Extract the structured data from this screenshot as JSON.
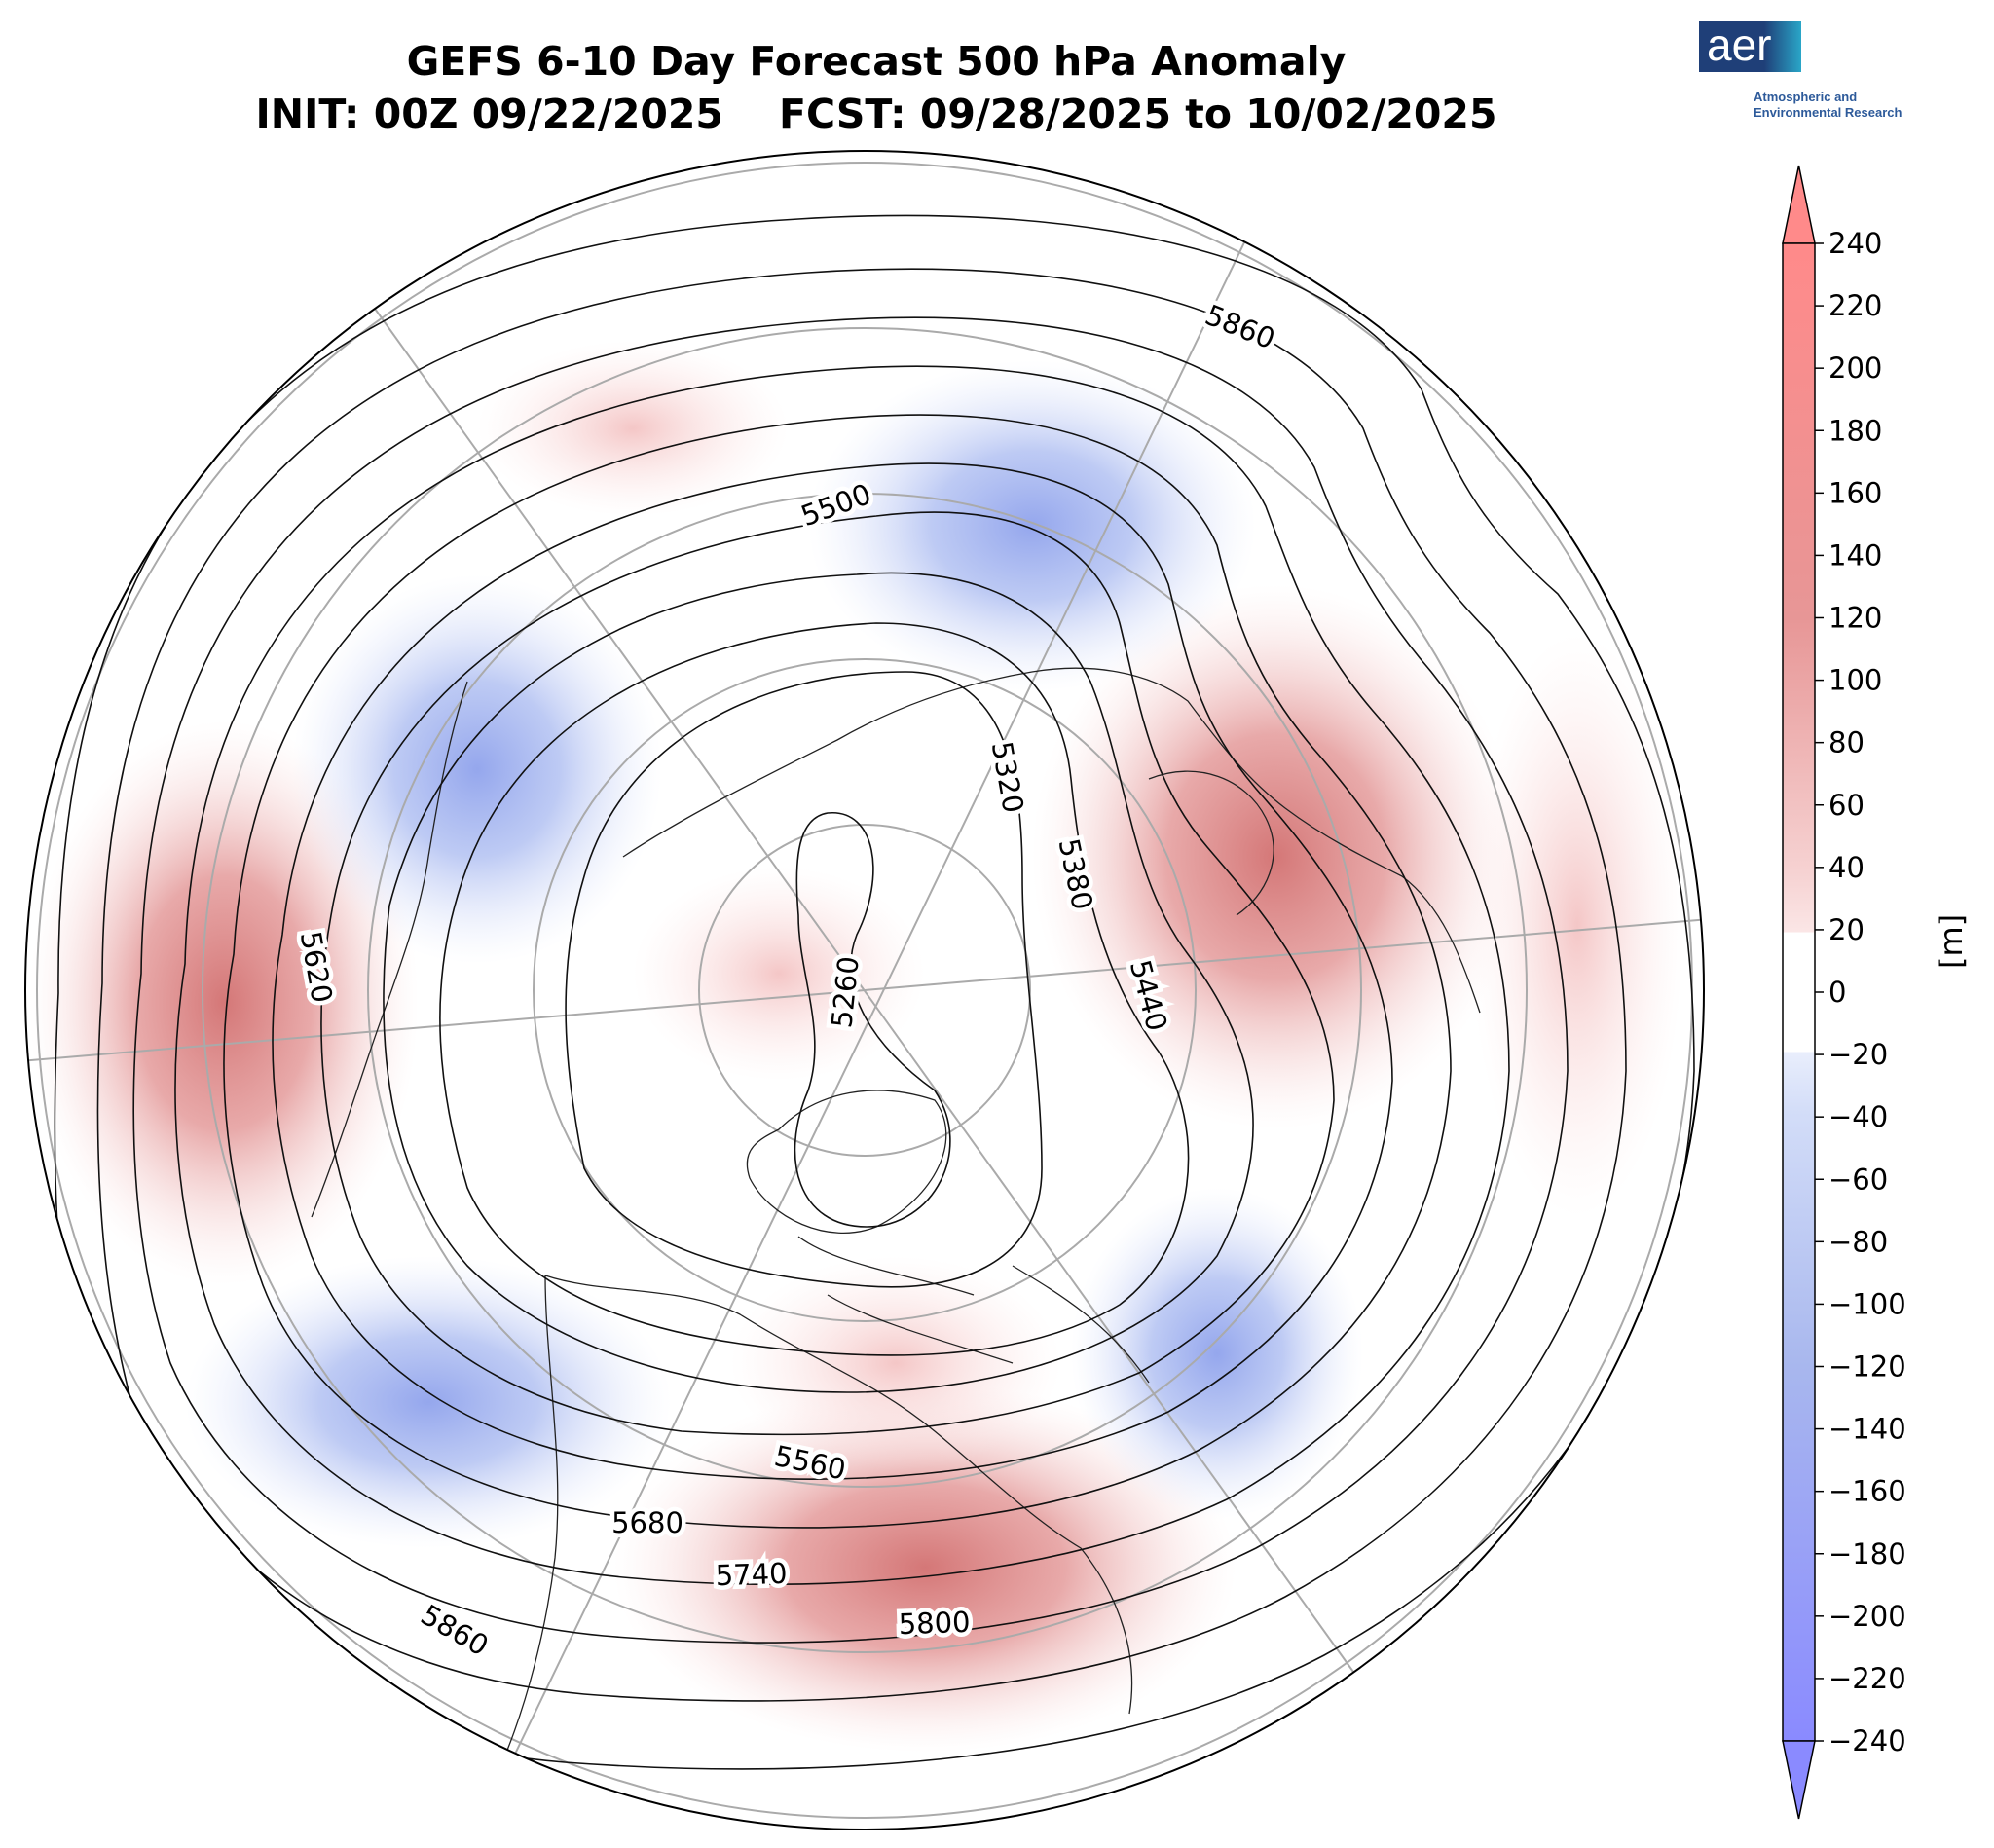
{
  "title": {
    "line1": "GEFS 6-10 Day Forecast 500 hPa Anomaly",
    "line2": "INIT: 00Z 09/22/2025    FCST: 09/28/2025 to 10/02/2025"
  },
  "logo": {
    "mark": "aer",
    "tagline1": "Atmospheric and",
    "tagline2": "Environmental Research",
    "colors": {
      "box": "#1f3f78",
      "accent": "#2aa6c8",
      "text": "#2d5a9a"
    }
  },
  "colorbar": {
    "units": "[m]",
    "ticks": [
      "240",
      "220",
      "200",
      "180",
      "160",
      "140",
      "120",
      "100",
      "80",
      "60",
      "40",
      "20",
      "0",
      "−20",
      "−40",
      "−60",
      "−80",
      "−100",
      "−120",
      "−140",
      "−160",
      "−180",
      "−200",
      "−220",
      "−240"
    ],
    "extend": "both",
    "colormap": "blue-white-red (bwr), masked between -20 and 20",
    "colors": {
      "max": "#ff8a8a",
      "min": "#8a8aff",
      "neutral": "#ffffff"
    }
  },
  "map": {
    "projection": "North Polar Stereographic",
    "variable": "500 hPa geopotential height (contours, m) with anomaly shading (m)",
    "contour_labels": [
      "5860",
      "5500",
      "5320",
      "5380",
      "5440",
      "5620",
      "5260",
      "5560",
      "5680",
      "5740",
      "5800",
      "5860"
    ],
    "anomaly_centers": [
      {
        "name": "east-asia-ridge",
        "sign": "positive",
        "peak": 180
      },
      {
        "name": "north-atlantic-ridge",
        "sign": "positive",
        "peak": 180
      },
      {
        "name": "central-north-america-ridge",
        "sign": "positive",
        "peak": 150
      },
      {
        "name": "north-pole-ridge",
        "sign": "positive",
        "peak": 80
      },
      {
        "name": "northern-europe-trough",
        "sign": "negative",
        "peak": -110
      },
      {
        "name": "northeast-asia-trough",
        "sign": "negative",
        "peak": -110
      },
      {
        "name": "gulf-of-alaska-trough",
        "sign": "negative",
        "peak": -110
      },
      {
        "name": "labrador-trough",
        "sign": "negative",
        "peak": -100
      }
    ]
  }
}
